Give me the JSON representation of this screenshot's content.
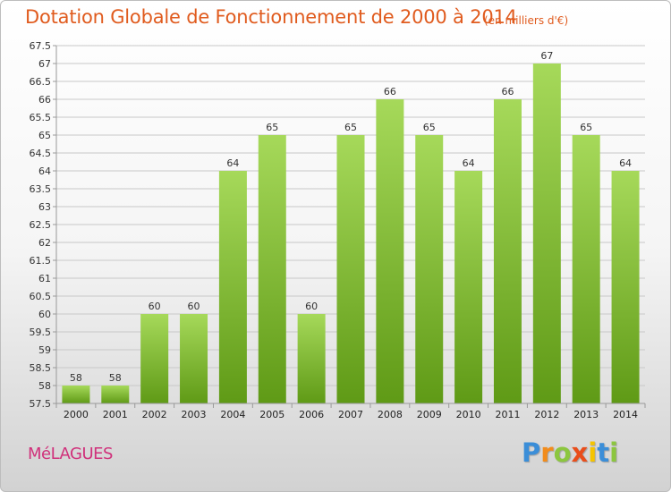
{
  "title": "Dotation Globale de Fonctionnement de 2000 à 2014",
  "subtitle": "(en milliers d'€)",
  "town": "MéLAGUES",
  "logo": {
    "letters": [
      "P",
      "r",
      "o",
      "x",
      "i",
      "t",
      "i"
    ],
    "colors": [
      "#3b8ed8",
      "#f28c1c",
      "#8cc63f",
      "#e94e1b",
      "#f5c400",
      "#3b8ed8",
      "#8cc63f"
    ]
  },
  "colors": {
    "bar_top": "#a6d95a",
    "bar_bottom": "#5f9a16",
    "grid": "#c8c8c8",
    "title": "#e05b1e",
    "town": "#d0317b"
  },
  "chart_data": {
    "type": "bar",
    "categories": [
      "2000",
      "2001",
      "2002",
      "2003",
      "2004",
      "2005",
      "2006",
      "2007",
      "2008",
      "2009",
      "2010",
      "2011",
      "2012",
      "2013",
      "2014"
    ],
    "values": [
      58,
      58,
      60,
      60,
      64,
      65,
      60,
      65,
      66,
      65,
      64,
      66,
      67,
      65,
      64
    ],
    "title": "Dotation Globale de Fonctionnement de 2000 à 2014",
    "subtitle": "(en milliers d'€)",
    "ylim": [
      57.5,
      67.5
    ],
    "ytick_step": 0.5,
    "grid": true,
    "legend": "none"
  }
}
